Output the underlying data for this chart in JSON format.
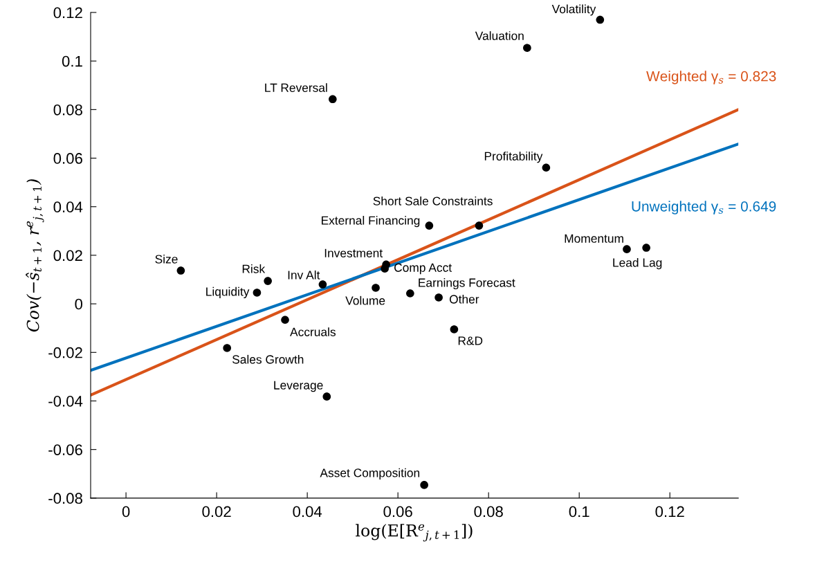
{
  "chart_data": {
    "type": "scatter",
    "xlabel": "log(E[R$^{e}$$_{j,t+1}$])",
    "ylabel": "Cov(−ŝ$_{t+1}$, r$^{e}$$_{j,t+1}$)",
    "xlim": [
      -0.0078,
      0.1351
    ],
    "ylim": [
      -0.08,
      0.12
    ],
    "xticks": [
      0,
      0.02,
      0.04,
      0.06,
      0.08,
      0.1,
      0.12
    ],
    "yticks": [
      -0.08,
      -0.06,
      -0.04,
      -0.02,
      0,
      0.02,
      0.04,
      0.06,
      0.08,
      0.1,
      0.12
    ],
    "grid": false,
    "series": [
      {
        "marker": "circle",
        "color": "#000000",
        "x": [
          0.1046,
          0.0885,
          0.0456,
          0.0927,
          0.0779,
          0.0669,
          0.1105,
          0.1148,
          0.0121,
          0.0574,
          0.0571,
          0.0313,
          0.0434,
          0.0289,
          0.0551,
          0.0627,
          0.069,
          0.0351,
          0.0724,
          0.0223,
          0.0443,
          0.0658
        ],
        "values": [
          0.117,
          0.1054,
          0.0843,
          0.0561,
          0.0322,
          0.0322,
          0.0225,
          0.0231,
          0.0137,
          0.0162,
          0.0145,
          0.0094,
          0.008,
          0.0046,
          0.0066,
          0.0043,
          0.0026,
          -0.0066,
          -0.0105,
          -0.0182,
          -0.0382,
          -0.0746
        ]
      },
      {
        "type": "line",
        "name": "Weighted γ$_{s}$ = 0.823",
        "color": "#d95319",
        "x": [
          -0.0078,
          0.1351
        ],
        "values": [
          -0.0376,
          0.08
        ]
      },
      {
        "type": "line",
        "name": "Unweighted γ$_{s}$ = 0.649",
        "color": "#0072bd",
        "x": [
          -0.0078,
          0.1351
        ],
        "values": [
          -0.0274,
          0.0658
        ]
      }
    ],
    "annotations": [
      {
        "text": "Volatility",
        "x": 0.1046,
        "y": 0.117
      },
      {
        "text": "Valuation",
        "x": 0.0885,
        "y": 0.1054
      },
      {
        "text": "LT Reversal",
        "x": 0.0456,
        "y": 0.0843
      },
      {
        "text": "Profitability",
        "x": 0.0927,
        "y": 0.0561
      },
      {
        "text": "Short Sale Constraints",
        "x": 0.0779,
        "y": 0.0322
      },
      {
        "text": "External Financing",
        "x": 0.0669,
        "y": 0.0322
      },
      {
        "text": "Momentum",
        "x": 0.1105,
        "y": 0.0225
      },
      {
        "text": "Lead Lag",
        "x": 0.1148,
        "y": 0.0231
      },
      {
        "text": "Size",
        "x": 0.0121,
        "y": 0.0137
      },
      {
        "text": "Investment",
        "x": 0.0574,
        "y": 0.0162
      },
      {
        "text": "Comp Acct",
        "x": 0.0571,
        "y": 0.0145
      },
      {
        "text": "Risk",
        "x": 0.0313,
        "y": 0.0094
      },
      {
        "text": "Inv Alt",
        "x": 0.0434,
        "y": 0.008
      },
      {
        "text": "Liquidity",
        "x": 0.0289,
        "y": 0.0046
      },
      {
        "text": "Volume",
        "x": 0.0551,
        "y": 0.0066
      },
      {
        "text": "Earnings Forecast",
        "x": 0.0627,
        "y": 0.0043
      },
      {
        "text": "Other",
        "x": 0.069,
        "y": 0.0026
      },
      {
        "text": "Accruals",
        "x": 0.0351,
        "y": -0.0066
      },
      {
        "text": "R&D",
        "x": 0.0724,
        "y": -0.0105
      },
      {
        "text": "Sales Growth",
        "x": 0.0223,
        "y": -0.0182
      },
      {
        "text": "Leverage",
        "x": 0.0443,
        "y": -0.0382
      },
      {
        "text": "Asset Composition",
        "x": 0.0658,
        "y": -0.0746
      }
    ]
  }
}
